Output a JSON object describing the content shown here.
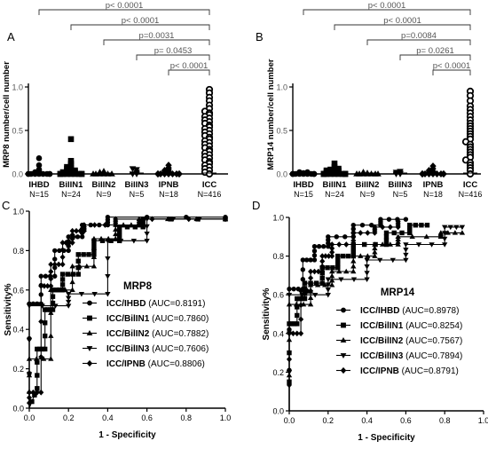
{
  "chart_data": [
    {
      "panel_letter": "A",
      "type": "scatter",
      "ylabel": "MRP8 number/cell number",
      "ylim": [
        0,
        1.0
      ],
      "yticks": [
        "0.0",
        "0.5",
        "1.0"
      ],
      "categories": [
        "IHBD",
        "BilIN1",
        "BilIN2",
        "BilIN3",
        "IPNB",
        "ICC"
      ],
      "group_n": [
        "N=15",
        "N=24",
        "N=9",
        "N=5",
        "N=18",
        "N=416"
      ],
      "comparisons": [
        {
          "pair": [
            "IHBD",
            "ICC"
          ],
          "p": "p< 0.0001"
        },
        {
          "pair": [
            "BilIN1",
            "ICC"
          ],
          "p": "p< 0.0001"
        },
        {
          "pair": [
            "BilIN2",
            "ICC"
          ],
          "p": "p=0.0031"
        },
        {
          "pair": [
            "BilIN3",
            "ICC"
          ],
          "p": "p= 0.0453"
        },
        {
          "pair": [
            "IPNB",
            "ICC"
          ],
          "p": "p< 0.0001"
        }
      ],
      "points": {
        "IHBD": [
          0.0,
          0.0,
          0.0,
          0.0,
          0.0,
          0.0,
          0.0,
          0.0,
          0.0,
          0.01,
          0.02,
          0.03,
          0.05,
          0.1,
          0.18
        ],
        "BilIN1": [
          0.0,
          0.0,
          0.0,
          0.0,
          0.0,
          0.0,
          0.0,
          0.0,
          0.0,
          0.01,
          0.01,
          0.02,
          0.02,
          0.03,
          0.03,
          0.04,
          0.05,
          0.06,
          0.07,
          0.08,
          0.1,
          0.12,
          0.15,
          0.4
        ],
        "BilIN2": [
          0.0,
          0.0,
          0.0,
          0.0,
          0.0,
          0.0,
          0.01,
          0.02,
          0.03
        ],
        "BilIN3": [
          0.0,
          0.0,
          0.02,
          0.05,
          0.06
        ],
        "IPNB": [
          0.0,
          0.0,
          0.0,
          0.0,
          0.0,
          0.0,
          0.0,
          0.0,
          0.0,
          0.0,
          0.0,
          0.01,
          0.02,
          0.03,
          0.04,
          0.05,
          0.07,
          0.1
        ],
        "ICC": [
          0.97,
          0.93,
          0.88,
          0.84,
          0.79,
          0.75,
          0.72,
          0.7,
          0.68,
          0.66,
          0.64,
          0.62,
          0.6,
          0.58,
          0.56,
          0.54,
          0.52,
          0.5,
          0.48,
          0.46,
          0.44,
          0.42,
          0.4,
          0.38,
          0.36,
          0.34,
          0.32,
          0.3,
          0.28,
          0.26,
          0.24,
          0.22,
          0.2,
          0.18,
          0.16,
          0.14,
          0.12,
          0.1,
          0.08,
          0.06,
          0.04,
          0.02,
          0.0
        ]
      }
    },
    {
      "panel_letter": "B",
      "type": "scatter",
      "ylabel": "MRP14 number/cell number",
      "ylim": [
        0,
        1.0
      ],
      "yticks": [
        "0.0",
        "0.5",
        "1.0"
      ],
      "categories": [
        "IHBD",
        "BilIN1",
        "BilIN2",
        "BilIN3",
        "IPNB",
        "ICC"
      ],
      "group_n": [
        "N=15",
        "N=24",
        "N=9",
        "N=5",
        "N=18",
        "N=416"
      ],
      "comparisons": [
        {
          "pair": [
            "IHBD",
            "ICC"
          ],
          "p": "p< 0.0001"
        },
        {
          "pair": [
            "BilIN1",
            "ICC"
          ],
          "p": "p< 0.0001"
        },
        {
          "pair": [
            "BilIN2",
            "ICC"
          ],
          "p": "p=0.0084"
        },
        {
          "pair": [
            "BilIN3",
            "ICC"
          ],
          "p": "p= 0.0261"
        },
        {
          "pair": [
            "IPNB",
            "ICC"
          ],
          "p": "p< 0.0001"
        }
      ],
      "points": {
        "IHBD": [
          0.0,
          0.0,
          0.0,
          0.0,
          0.0,
          0.0,
          0.0,
          0.0,
          0.0,
          0.0,
          0.0,
          0.0,
          0.01,
          0.02,
          0.02
        ],
        "BilIN1": [
          0.0,
          0.0,
          0.0,
          0.0,
          0.0,
          0.0,
          0.0,
          0.0,
          0.0,
          0.0,
          0.0,
          0.01,
          0.01,
          0.02,
          0.02,
          0.03,
          0.03,
          0.04,
          0.04,
          0.05,
          0.05,
          0.06,
          0.08,
          0.12
        ],
        "BilIN2": [
          0.0,
          0.0,
          0.0,
          0.0,
          0.0,
          0.0,
          0.0,
          0.01,
          0.02
        ],
        "BilIN3": [
          0.0,
          0.0,
          0.01,
          0.02,
          0.03
        ],
        "IPNB": [
          0.0,
          0.0,
          0.0,
          0.0,
          0.0,
          0.0,
          0.0,
          0.0,
          0.0,
          0.0,
          0.0,
          0.0,
          0.01,
          0.02,
          0.03,
          0.04,
          0.06,
          0.09
        ],
        "ICC": [
          0.95,
          0.9,
          0.84,
          0.78,
          0.74,
          0.7,
          0.66,
          0.62,
          0.58,
          0.55,
          0.52,
          0.49,
          0.46,
          0.43,
          0.4,
          0.37,
          0.34,
          0.31,
          0.28,
          0.25,
          0.22,
          0.19,
          0.16,
          0.13,
          0.1,
          0.07,
          0.04,
          0.0
        ]
      }
    },
    {
      "panel_letter": "C",
      "type": "line",
      "title": "MRP8",
      "xlabel": "1 - Specificity",
      "ylabel": "Sensitivity%",
      "xlim": [
        0,
        1.0
      ],
      "ylim": [
        0,
        1.0
      ],
      "xticks": [
        "0.0",
        "0.2",
        "0.4",
        "0.6",
        "0.8",
        "1.0"
      ],
      "yticks": [
        "0.0",
        "0.2",
        "0.4",
        "0.6",
        "0.8",
        "1.0"
      ],
      "series": [
        {
          "name": "ICC/IHBD",
          "auc": "(AUC=0.8191)",
          "marker": "circle",
          "points": [
            [
              0,
              0
            ],
            [
              0,
              0.53
            ],
            [
              0.06,
              0.53
            ],
            [
              0.06,
              0.67
            ],
            [
              0.13,
              0.67
            ],
            [
              0.13,
              0.8
            ],
            [
              0.2,
              0.8
            ],
            [
              0.2,
              0.87
            ],
            [
              0.27,
              0.87
            ],
            [
              0.27,
              0.93
            ],
            [
              0.4,
              0.93
            ],
            [
              0.4,
              0.97
            ],
            [
              1,
              0.97
            ]
          ]
        },
        {
          "name": "ICC/BilIN1",
          "auc": "(AUC=0.7860)",
          "marker": "square",
          "points": [
            [
              0,
              0
            ],
            [
              0.04,
              0.1
            ],
            [
              0.04,
              0.3
            ],
            [
              0.08,
              0.3
            ],
            [
              0.08,
              0.5
            ],
            [
              0.12,
              0.5
            ],
            [
              0.12,
              0.6
            ],
            [
              0.17,
              0.6
            ],
            [
              0.17,
              0.68
            ],
            [
              0.25,
              0.68
            ],
            [
              0.25,
              0.78
            ],
            [
              0.33,
              0.78
            ],
            [
              0.33,
              0.85
            ],
            [
              0.46,
              0.85
            ],
            [
              0.46,
              0.92
            ],
            [
              0.58,
              0.92
            ],
            [
              0.58,
              0.96
            ],
            [
              1,
              0.96
            ]
          ]
        },
        {
          "name": "ICC/BilIN2",
          "auc": "(AUC=0.7882)",
          "marker": "triangle-up",
          "points": [
            [
              0,
              0
            ],
            [
              0,
              0.25
            ],
            [
              0.11,
              0.25
            ],
            [
              0.11,
              0.6
            ],
            [
              0.22,
              0.6
            ],
            [
              0.22,
              0.72
            ],
            [
              0.33,
              0.72
            ],
            [
              0.33,
              0.86
            ],
            [
              0.44,
              0.86
            ],
            [
              0.44,
              0.93
            ],
            [
              0.56,
              0.93
            ],
            [
              0.56,
              0.96
            ],
            [
              1,
              0.96
            ]
          ]
        },
        {
          "name": "ICC/BilIN3",
          "auc": "(AUC=0.7606)",
          "marker": "triangle-down",
          "points": [
            [
              0,
              0
            ],
            [
              0,
              0.52
            ],
            [
              0.2,
              0.52
            ],
            [
              0.2,
              0.58
            ],
            [
              0.4,
              0.58
            ],
            [
              0.4,
              0.85
            ],
            [
              0.6,
              0.85
            ],
            [
              0.6,
              0.96
            ],
            [
              1,
              0.96
            ]
          ]
        },
        {
          "name": "ICC/IPNB",
          "auc": "(AUC=0.8806)",
          "marker": "diamond",
          "points": [
            [
              0,
              0
            ],
            [
              0,
              0.08
            ],
            [
              0.06,
              0.08
            ],
            [
              0.06,
              0.62
            ],
            [
              0.11,
              0.62
            ],
            [
              0.11,
              0.73
            ],
            [
              0.17,
              0.73
            ],
            [
              0.17,
              0.84
            ],
            [
              0.22,
              0.84
            ],
            [
              0.22,
              0.9
            ],
            [
              0.28,
              0.9
            ],
            [
              0.28,
              0.93
            ],
            [
              0.44,
              0.93
            ],
            [
              0.44,
              0.96
            ],
            [
              1,
              0.96
            ]
          ]
        }
      ]
    },
    {
      "panel_letter": "D",
      "type": "line",
      "title": "MRP14",
      "xlabel": "1 - Specificity",
      "ylabel": "Sensitivity%",
      "xlim": [
        0,
        1.0
      ],
      "ylim": [
        0,
        1.0
      ],
      "xticks": [
        "0.0",
        "0.2",
        "0.4",
        "0.6",
        "0.8",
        "1.0"
      ],
      "yticks": [
        "0.0",
        "0.2",
        "0.4",
        "0.6",
        "0.8",
        "1.0"
      ],
      "series": [
        {
          "name": "ICC/IHBD",
          "auc": "(AUC=0.8978)",
          "marker": "circle",
          "points": [
            [
              0,
              0
            ],
            [
              0,
              0.63
            ],
            [
              0.07,
              0.63
            ],
            [
              0.07,
              0.78
            ],
            [
              0.13,
              0.78
            ],
            [
              0.13,
              0.85
            ],
            [
              0.2,
              0.85
            ],
            [
              0.2,
              0.9
            ],
            [
              0.33,
              0.9
            ],
            [
              0.33,
              0.96
            ],
            [
              0.47,
              0.96
            ],
            [
              0.47,
              0.99
            ],
            [
              0.6,
              0.99
            ]
          ]
        },
        {
          "name": "ICC/BilIN1",
          "auc": "(AUC=0.8254)",
          "marker": "square",
          "points": [
            [
              0,
              0
            ],
            [
              0,
              0.45
            ],
            [
              0.04,
              0.45
            ],
            [
              0.04,
              0.58
            ],
            [
              0.08,
              0.58
            ],
            [
              0.08,
              0.66
            ],
            [
              0.17,
              0.66
            ],
            [
              0.17,
              0.74
            ],
            [
              0.25,
              0.74
            ],
            [
              0.25,
              0.8
            ],
            [
              0.33,
              0.8
            ],
            [
              0.33,
              0.86
            ],
            [
              0.5,
              0.86
            ],
            [
              0.5,
              0.92
            ],
            [
              0.62,
              0.92
            ],
            [
              0.62,
              0.96
            ],
            [
              0.71,
              0.96
            ]
          ]
        },
        {
          "name": "ICC/BilIN2",
          "auc": "(AUC=0.7567)",
          "marker": "triangle-up",
          "points": [
            [
              0,
              0
            ],
            [
              0,
              0.55
            ],
            [
              0.11,
              0.55
            ],
            [
              0.11,
              0.65
            ],
            [
              0.22,
              0.65
            ],
            [
              0.22,
              0.72
            ],
            [
              0.33,
              0.72
            ],
            [
              0.33,
              0.8
            ],
            [
              0.44,
              0.8
            ],
            [
              0.44,
              0.86
            ],
            [
              0.56,
              0.86
            ],
            [
              0.56,
              0.9
            ],
            [
              0.78,
              0.9
            ],
            [
              0.78,
              0.92
            ],
            [
              0.89,
              0.92
            ]
          ]
        },
        {
          "name": "ICC/BilIN3",
          "auc": "(AUC=0.7894)",
          "marker": "triangle-down",
          "points": [
            [
              0,
              0
            ],
            [
              0,
              0.6
            ],
            [
              0.2,
              0.6
            ],
            [
              0.2,
              0.68
            ],
            [
              0.4,
              0.68
            ],
            [
              0.4,
              0.78
            ],
            [
              0.6,
              0.78
            ],
            [
              0.6,
              0.86
            ],
            [
              0.8,
              0.86
            ],
            [
              0.8,
              0.95
            ],
            [
              0.89,
              0.95
            ]
          ]
        },
        {
          "name": "ICC/IPNB",
          "auc": "(AUC=0.8791)",
          "marker": "diamond",
          "points": [
            [
              0,
              0
            ],
            [
              0,
              0.4
            ],
            [
              0.06,
              0.4
            ],
            [
              0.06,
              0.62
            ],
            [
              0.11,
              0.62
            ],
            [
              0.11,
              0.72
            ],
            [
              0.17,
              0.72
            ],
            [
              0.17,
              0.8
            ],
            [
              0.22,
              0.8
            ],
            [
              0.22,
              0.86
            ],
            [
              0.33,
              0.86
            ],
            [
              0.33,
              0.92
            ],
            [
              0.44,
              0.92
            ],
            [
              0.44,
              0.95
            ],
            [
              0.56,
              0.95
            ],
            [
              0.56,
              0.98
            ]
          ]
        }
      ]
    }
  ]
}
